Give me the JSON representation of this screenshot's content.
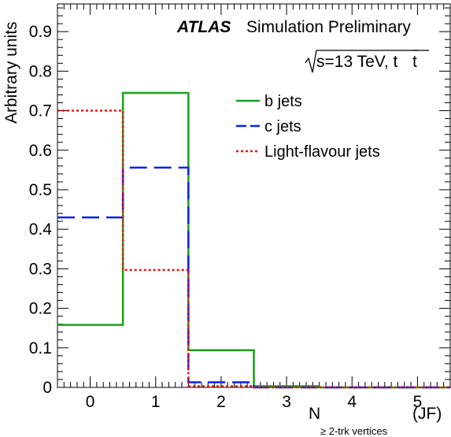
{
  "experiment_label": "ATLAS",
  "status_label": "Simulation Preliminary",
  "energy_label": "s=13 TeV, t",
  "energy_label_bar_t": "t",
  "ylabel": "Arbitrary units",
  "xlabel_main": "N",
  "xlabel_sub": "≥ 2-trk vertices",
  "xlabel_suffix": "(JF)",
  "chart_data": {
    "type": "step-histogram",
    "x_tick_labels": [
      "0",
      "1",
      "2",
      "3",
      "4",
      "5"
    ],
    "y_tick_labels": [
      "0",
      "0.1",
      "0.2",
      "0.3",
      "0.4",
      "0.5",
      "0.6",
      "0.7",
      "0.8",
      "0.9"
    ],
    "xlim": [
      -0.5,
      5.5
    ],
    "ylim": [
      0,
      0.97
    ],
    "bin_centers": [
      0,
      1,
      2,
      3,
      4,
      5
    ],
    "series": [
      {
        "name": "b jets",
        "color": "#1aa11a",
        "dash": "solid",
        "values": [
          0.158,
          0.745,
          0.094,
          0.003,
          0.0,
          0.0
        ]
      },
      {
        "name": "c jets",
        "color": "#0a1ff0",
        "dash": "long-dash",
        "values": [
          0.43,
          0.556,
          0.013,
          0.0,
          0.0,
          0.0
        ]
      },
      {
        "name": "Light-flavour jets",
        "color": "#f01010",
        "dash": "dotted",
        "values": [
          0.7,
          0.297,
          0.003,
          0.0,
          0.0,
          0.0
        ]
      }
    ],
    "legend_position": "top-right",
    "grid": false
  }
}
